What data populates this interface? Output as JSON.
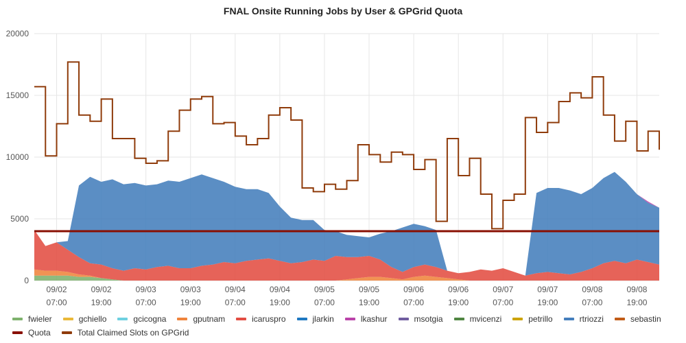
{
  "chart_data": {
    "type": "area",
    "title": "FNAL Onsite Running Jobs by User & GPGrid Quota",
    "xlabel": "",
    "ylabel": "",
    "ylim": [
      0,
      20000
    ],
    "yticks": [
      0,
      5000,
      10000,
      15000,
      20000
    ],
    "xticks": [
      {
        "date": "09/02",
        "time": "07:00"
      },
      {
        "date": "09/02",
        "time": "19:00"
      },
      {
        "date": "09/03",
        "time": "07:00"
      },
      {
        "date": "09/03",
        "time": "19:00"
      },
      {
        "date": "09/04",
        "time": "07:00"
      },
      {
        "date": "09/04",
        "time": "19:00"
      },
      {
        "date": "09/05",
        "time": "07:00"
      },
      {
        "date": "09/05",
        "time": "19:00"
      },
      {
        "date": "09/06",
        "time": "07:00"
      },
      {
        "date": "09/06",
        "time": "19:00"
      },
      {
        "date": "09/07",
        "time": "07:00"
      },
      {
        "date": "09/07",
        "time": "19:00"
      },
      {
        "date": "09/08",
        "time": "07:00"
      },
      {
        "date": "09/08",
        "time": "19:00"
      }
    ],
    "grid": true,
    "legend_position": "bottom",
    "x_hours": [
      0,
      3,
      6,
      9,
      12,
      15,
      18,
      21,
      24,
      27,
      30,
      33,
      36,
      39,
      42,
      45,
      48,
      51,
      54,
      57,
      60,
      63,
      66,
      69,
      72,
      75,
      78,
      81,
      84,
      87,
      90,
      93,
      96,
      99,
      102,
      105,
      108,
      111,
      114,
      117,
      120,
      123,
      126,
      129,
      132,
      135,
      138,
      141,
      144,
      147,
      150,
      153,
      156,
      159,
      162,
      165,
      168
    ],
    "legend": [
      {
        "name": "fwieler",
        "color": "#7eb26d"
      },
      {
        "name": "gchiello",
        "color": "#eab839"
      },
      {
        "name": "gcicogna",
        "color": "#6ed0e0"
      },
      {
        "name": "gputnam",
        "color": "#ef843c"
      },
      {
        "name": "icaruspro",
        "color": "#e24d42"
      },
      {
        "name": "jlarkin",
        "color": "#1f78c1"
      },
      {
        "name": "lkashur",
        "color": "#ba43a9"
      },
      {
        "name": "msotgia",
        "color": "#705da0"
      },
      {
        "name": "mvicenzi",
        "color": "#508642"
      },
      {
        "name": "petrillo",
        "color": "#cca300"
      },
      {
        "name": "rtriozzi",
        "color": "#447ebc"
      },
      {
        "name": "sebastin",
        "color": "#c15c17"
      },
      {
        "name": "Quota",
        "color": "#890f02"
      },
      {
        "name": "Total Claimed Slots on GPGrid",
        "color": "#8f3b0a"
      }
    ],
    "series": [
      {
        "name": "fwieler",
        "values": [
          400,
          400,
          400,
          400,
          300,
          300,
          200,
          100,
          0,
          0,
          0,
          0,
          0,
          0,
          0,
          0,
          0,
          0,
          0,
          0,
          0,
          0,
          0,
          0,
          0,
          0,
          0,
          0,
          0,
          0,
          0,
          0,
          0,
          0,
          0,
          0,
          0,
          0,
          0,
          0,
          0,
          0,
          0,
          0,
          0,
          0,
          0,
          0,
          0,
          0,
          0,
          0,
          0,
          0,
          0,
          0,
          0
        ]
      },
      {
        "name": "gputnam",
        "values": [
          500,
          400,
          400,
          300,
          200,
          100,
          0,
          0,
          0,
          0,
          0,
          0,
          0,
          0,
          0,
          0,
          0,
          0,
          0,
          0,
          0,
          0,
          0,
          0,
          0,
          0,
          0,
          0,
          100,
          200,
          300,
          300,
          200,
          100,
          300,
          400,
          300,
          200,
          100,
          0,
          0,
          0,
          0,
          0,
          0,
          0,
          0,
          0,
          0,
          0,
          0,
          0,
          0,
          0,
          0,
          0,
          0
        ]
      },
      {
        "name": "icaruspro",
        "values": [
          3200,
          2000,
          2300,
          1800,
          1400,
          1000,
          1100,
          900,
          800,
          1000,
          900,
          1100,
          1200,
          1000,
          1000,
          1200,
          1300,
          1500,
          1400,
          1600,
          1700,
          1800,
          1600,
          1400,
          1500,
          1700,
          1600,
          2000,
          1800,
          1700,
          1700,
          1400,
          900,
          600,
          800,
          900,
          800,
          600,
          500,
          700,
          900,
          800,
          1000,
          700,
          400,
          600,
          700,
          600,
          500,
          700,
          1000,
          1400,
          1600,
          1400,
          1700,
          1500,
          1300
        ]
      },
      {
        "name": "rtriozzi",
        "values": [
          0,
          0,
          0,
          700,
          5800,
          7000,
          6700,
          7200,
          7000,
          6900,
          6800,
          6700,
          6900,
          7000,
          7300,
          7400,
          7000,
          6500,
          6200,
          5800,
          5700,
          5300,
          4400,
          3700,
          3400,
          3200,
          2500,
          2000,
          1800,
          1700,
          1500,
          2100,
          2900,
          3600,
          3500,
          3100,
          3000,
          0,
          0,
          0,
          0,
          0,
          0,
          0,
          0,
          6500,
          6800,
          6900,
          6800,
          6300,
          6500,
          6900,
          7200,
          6600,
          5300,
          4800,
          4600
        ]
      },
      {
        "name": "lkashur",
        "values": [
          0,
          0,
          0,
          0,
          0,
          0,
          0,
          0,
          0,
          0,
          0,
          0,
          0,
          0,
          0,
          0,
          0,
          0,
          0,
          0,
          0,
          0,
          0,
          0,
          0,
          0,
          0,
          0,
          0,
          0,
          0,
          0,
          0,
          0,
          0,
          0,
          0,
          0,
          0,
          0,
          0,
          0,
          0,
          0,
          0,
          0,
          0,
          0,
          0,
          0,
          0,
          0,
          0,
          0,
          0,
          100,
          0
        ]
      },
      {
        "name": "Total Claimed Slots on GPGrid",
        "values": [
          15700,
          10100,
          12700,
          17700,
          13400,
          12900,
          14700,
          11500,
          11500,
          9900,
          9500,
          9700,
          12100,
          13800,
          14700,
          14900,
          12700,
          12800,
          11700,
          11000,
          11500,
          13400,
          14000,
          13000,
          7500,
          7200,
          7800,
          7400,
          8100,
          11000,
          10200,
          9600,
          10400,
          10200,
          9000,
          9800,
          4800,
          11500,
          8500,
          9900,
          7000,
          4200,
          6500,
          7000,
          13200,
          12000,
          12800,
          14500,
          15200,
          14800,
          16500,
          13400,
          11300,
          12900,
          10500,
          12100,
          10600
        ]
      },
      {
        "name": "Quota",
        "values": [
          4000,
          4000,
          4000,
          4000,
          4000,
          4000,
          4000,
          4000,
          4000,
          4000,
          4000,
          4000,
          4000,
          4000,
          4000,
          4000,
          4000,
          4000,
          4000,
          4000,
          4000,
          4000,
          4000,
          4000,
          4000,
          4000,
          4000,
          4000,
          4000,
          4000,
          4000,
          4000,
          4000,
          4000,
          4000,
          4000,
          4000,
          4000,
          4000,
          4000,
          4000,
          4000,
          4000,
          4000,
          4000,
          4000,
          4000,
          4000,
          4000,
          4000,
          4000,
          4000,
          4000,
          4000,
          4000,
          4000,
          4000
        ]
      }
    ]
  }
}
